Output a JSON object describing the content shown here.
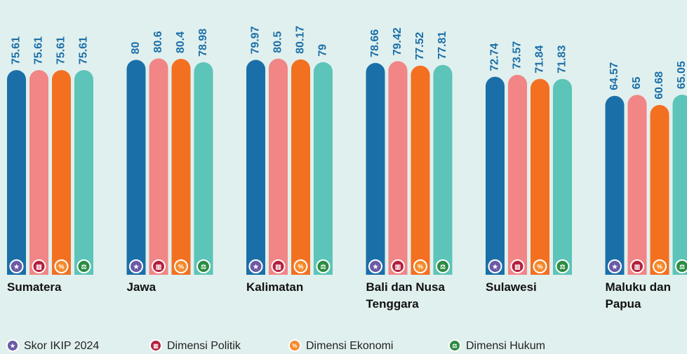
{
  "chart_data": {
    "type": "bar",
    "categories": [
      "Sumatera",
      "Jawa",
      "Kalimatan",
      "Bali dan Nusa Tenggara",
      "Sulawesi",
      "Maluku dan Papua"
    ],
    "series": [
      {
        "name": "Skor IKIP 2024",
        "color": "#1b6fa8",
        "values": [
          75.61,
          80,
          79.97,
          78.66,
          72.74,
          64.57
        ]
      },
      {
        "name": "Dimensi Politik",
        "color": "#f28585",
        "values": [
          75.61,
          80.6,
          80.5,
          79.42,
          73.57,
          65
        ]
      },
      {
        "name": "Dimensi Ekonomi",
        "color": "#f37021",
        "values": [
          75.61,
          80.4,
          80.17,
          77.52,
          71.84,
          60.68
        ]
      },
      {
        "name": "Dimensi Hukum",
        "color": "#5cc4b8",
        "values": [
          75.61,
          78.98,
          79,
          77.81,
          71.83,
          65.05
        ]
      }
    ],
    "ylim": [
      -12,
      90
    ]
  }
}
